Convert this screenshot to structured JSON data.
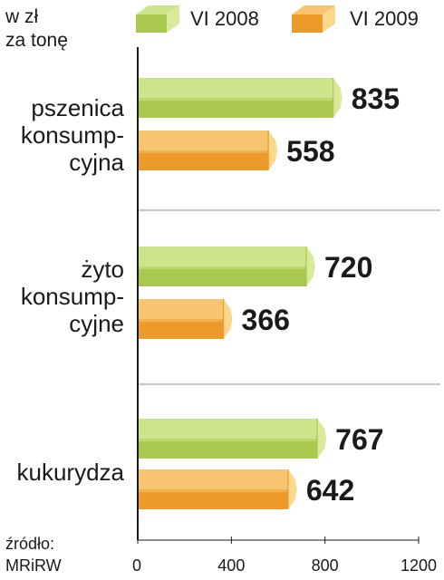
{
  "unit": [
    "w zł",
    "za tonę"
  ],
  "source": [
    "źródło:",
    "MRiRW"
  ],
  "colors": {
    "green_front": "#a9c94e",
    "green_top": "#cde48a",
    "green_side": "#d9ea9a",
    "orange_front": "#ec9a2a",
    "orange_top": "#f7c46f",
    "orange_side": "#fbd88c",
    "axis": "#1a1a1a",
    "divider": "#8c8c8c"
  },
  "chart_data": {
    "type": "bar",
    "orientation": "horizontal",
    "categories": [
      [
        "pszenica",
        "konsump-",
        "cyjna"
      ],
      [
        "żyto",
        "konsump-",
        "cyjne"
      ],
      [
        "kukurydza"
      ]
    ],
    "series": [
      {
        "name": "VI 2008",
        "color": "#a9c94e",
        "values": [
          835,
          720,
          767
        ]
      },
      {
        "name": "VI 2009",
        "color": "#ec9a2a",
        "values": [
          558,
          366,
          642
        ]
      }
    ],
    "xlim": [
      0,
      1200
    ],
    "xticks": [
      0,
      400,
      800,
      1200
    ],
    "legend": "top"
  }
}
